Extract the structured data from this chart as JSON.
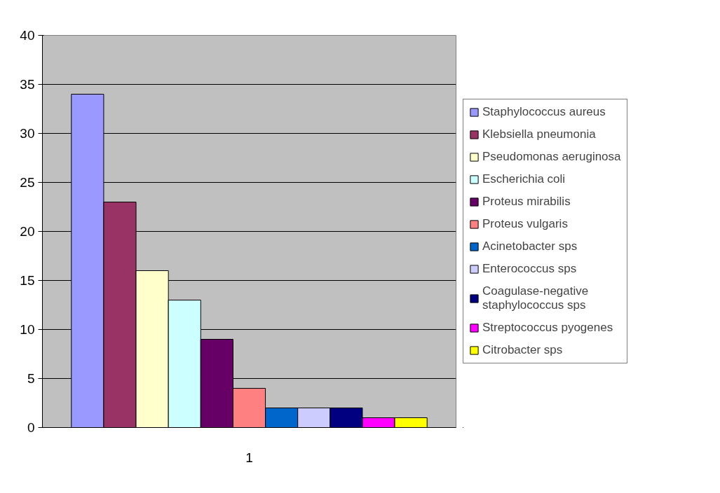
{
  "chart_data": {
    "type": "bar",
    "categories": [
      "1"
    ],
    "ylim": [
      0,
      40
    ],
    "yticks": [
      0,
      5,
      10,
      15,
      20,
      25,
      30,
      35,
      40
    ],
    "grid": "y",
    "legend": "right",
    "series": [
      {
        "name": "Staphylococcus aureus",
        "color": "#9999ff",
        "values": [
          34
        ]
      },
      {
        "name": "Klebsiella pneumonia",
        "color": "#993366",
        "values": [
          23
        ]
      },
      {
        "name": "Pseudomonas aeruginosa",
        "color": "#ffffcc",
        "values": [
          16
        ]
      },
      {
        "name": "Escherichia coli",
        "color": "#ccffff",
        "values": [
          13
        ]
      },
      {
        "name": "Proteus mirabilis",
        "color": "#660066",
        "values": [
          9
        ]
      },
      {
        "name": "Proteus vulgaris",
        "color": "#ff8080",
        "values": [
          4
        ]
      },
      {
        "name": "Acinetobacter sps",
        "color": "#0066cc",
        "values": [
          2
        ]
      },
      {
        "name": "Enterococcus sps",
        "color": "#ccccff",
        "values": [
          2
        ]
      },
      {
        "name": "Coagulase-negative staphylococcus sps",
        "color": "#000080",
        "values": [
          2
        ]
      },
      {
        "name": "Streptococcus pyogenes",
        "color": "#ff00ff",
        "values": [
          1
        ]
      },
      {
        "name": "Citrobacter sps",
        "color": "#ffff00",
        "values": [
          1
        ]
      }
    ]
  }
}
